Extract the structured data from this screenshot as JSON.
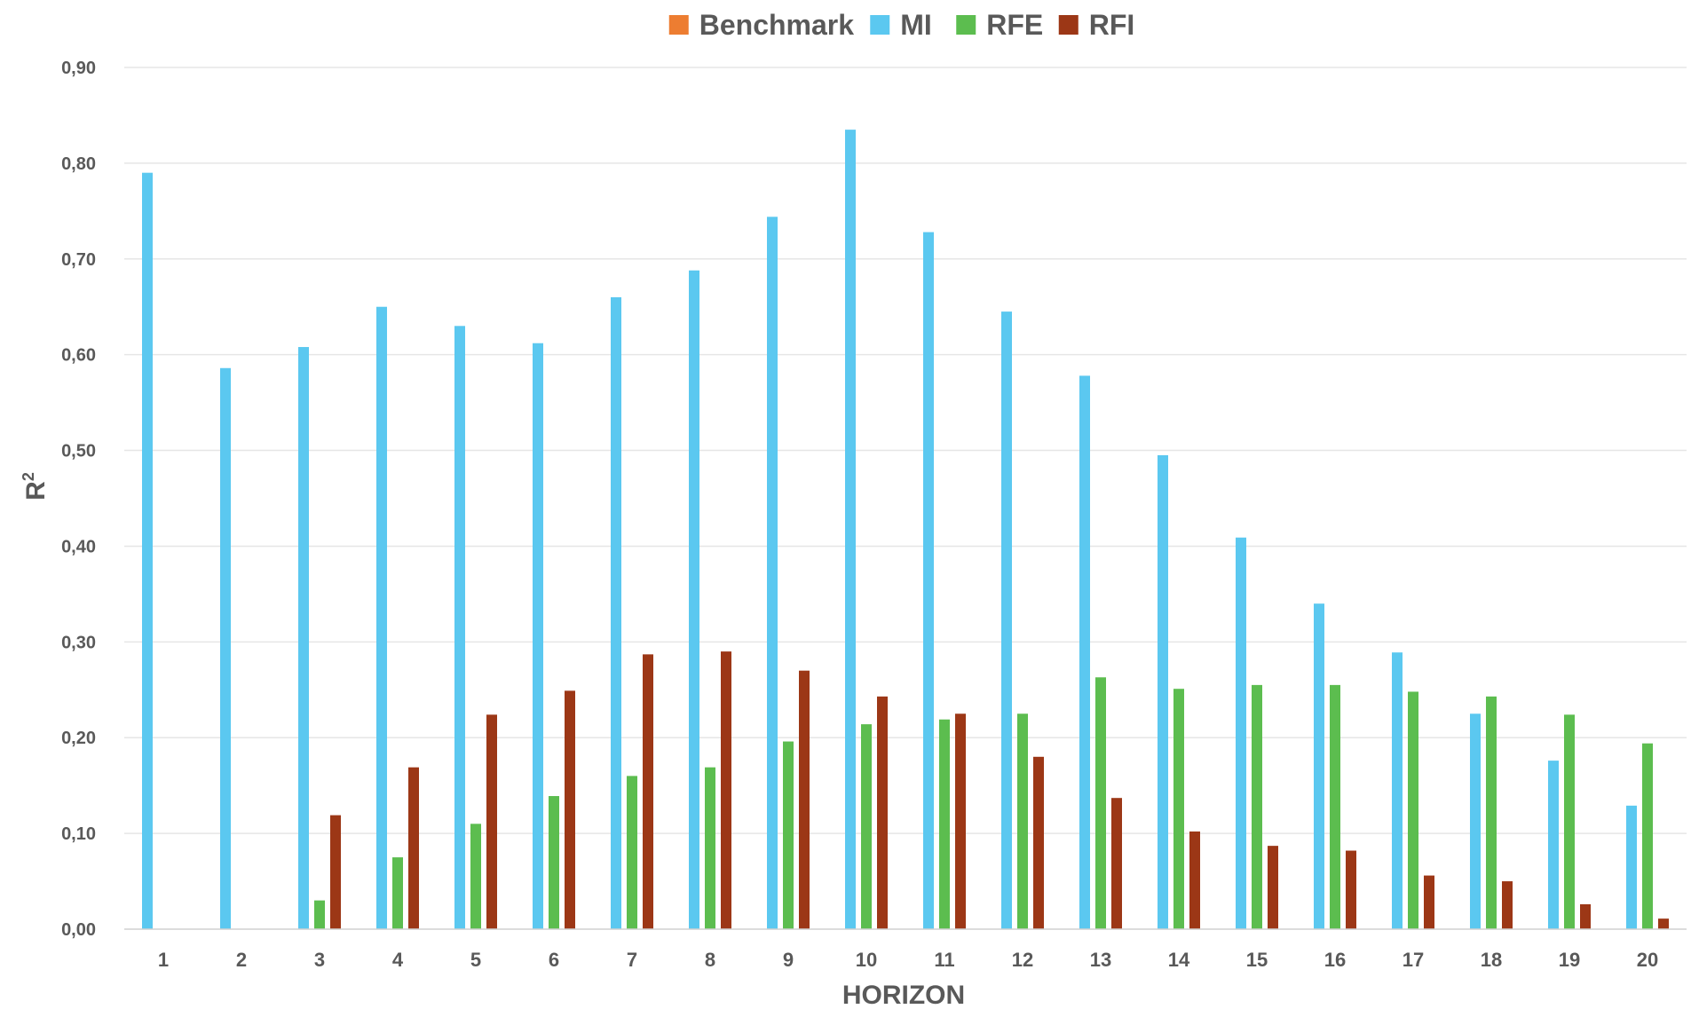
{
  "chart_data": {
    "type": "bar",
    "title": "",
    "xlabel": "HORIZON",
    "ylabel": "R",
    "ylabel_superscript": "2",
    "ylim": [
      0,
      0.9
    ],
    "ytick_values": [
      0,
      0.1,
      0.2,
      0.3,
      0.4,
      0.5,
      0.6,
      0.7,
      0.8,
      0.9
    ],
    "ytick_labels": [
      "0,00",
      "0,10",
      "0,20",
      "0,30",
      "0,40",
      "0,50",
      "0,60",
      "0,70",
      "0,80",
      "0,90"
    ],
    "grid": true,
    "legend_position": "top-center",
    "categories": [
      "1",
      "2",
      "3",
      "4",
      "5",
      "6",
      "7",
      "8",
      "9",
      "10",
      "11",
      "12",
      "13",
      "14",
      "15",
      "16",
      "17",
      "18",
      "19",
      "20"
    ],
    "series": [
      {
        "name": "Benchmark",
        "color": "#ed7d31",
        "values": [
          0,
          0,
          0,
          0,
          0,
          0,
          0,
          0,
          0,
          0,
          0,
          0,
          0,
          0,
          0,
          0,
          0,
          0,
          0,
          0
        ]
      },
      {
        "name": "MI",
        "color": "#5bc8f0",
        "values": [
          0.79,
          0.586,
          0.608,
          0.65,
          0.63,
          0.612,
          0.66,
          0.688,
          0.744,
          0.835,
          0.728,
          0.645,
          0.578,
          0.495,
          0.409,
          0.34,
          0.289,
          0.225,
          0.176,
          0.129
        ]
      },
      {
        "name": "RFE",
        "color": "#5cbd4f",
        "values": [
          0,
          0,
          0.03,
          0.075,
          0.11,
          0.139,
          0.16,
          0.169,
          0.196,
          0.214,
          0.219,
          0.225,
          0.263,
          0.251,
          0.255,
          0.255,
          0.248,
          0.243,
          0.224,
          0.194
        ]
      },
      {
        "name": "RFI",
        "color": "#9c3716",
        "values": [
          0,
          0,
          0.119,
          0.169,
          0.224,
          0.249,
          0.287,
          0.29,
          0.27,
          0.243,
          0.225,
          0.18,
          0.137,
          0.102,
          0.087,
          0.082,
          0.056,
          0.05,
          0.026,
          0.011
        ]
      }
    ]
  }
}
